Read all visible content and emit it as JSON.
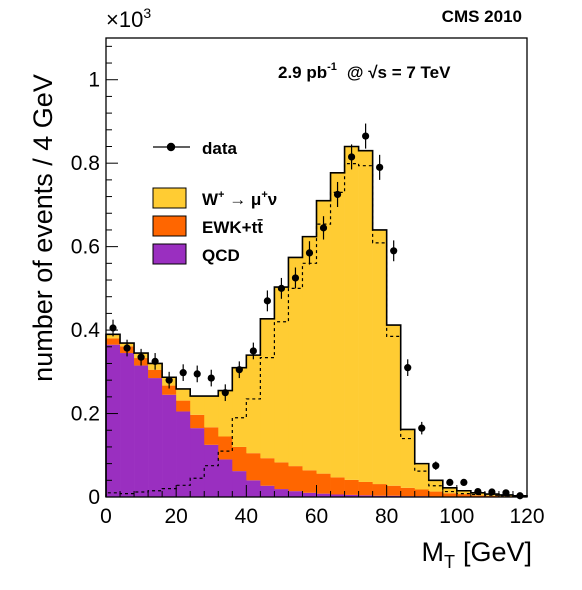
{
  "chart_data": {
    "type": "bar",
    "experiment_label": "CMS 2010",
    "luminosity_label": "2.9 pb",
    "luminosity_exponent": "-1",
    "energy_label": "@ √s = 7 TeV",
    "axis_multiplier": "×10",
    "axis_multiplier_exponent": "3",
    "xlabel": "M",
    "xlabel_sub": "T",
    "xlabel_units": "[GeV]",
    "ylabel": "number of events / 4 GeV",
    "xlim": [
      0,
      120
    ],
    "ylim": [
      0,
      1.1
    ],
    "bin_width": 4,
    "x_ticks": [
      0,
      20,
      40,
      60,
      80,
      100,
      120
    ],
    "x_tick_labels": [
      "0",
      "20",
      "40",
      "60",
      "80",
      "100",
      "120"
    ],
    "y_ticks": [
      0,
      0.2,
      0.4,
      0.6,
      0.8,
      1.0
    ],
    "y_tick_labels": [
      "0",
      "0.2",
      "0.4",
      "0.6",
      "0.8",
      "1"
    ],
    "bin_edges": [
      0,
      4,
      8,
      12,
      16,
      20,
      24,
      28,
      32,
      36,
      40,
      44,
      48,
      52,
      56,
      60,
      64,
      68,
      72,
      76,
      80,
      84,
      88,
      92,
      96,
      100,
      104,
      108,
      112,
      116,
      120
    ],
    "series": [
      {
        "name": "QCD",
        "color": "#9a2fc0",
        "values": [
          0.365,
          0.345,
          0.315,
          0.285,
          0.245,
          0.205,
          0.165,
          0.125,
          0.09,
          0.062,
          0.04,
          0.027,
          0.019,
          0.014,
          0.01,
          0.008,
          0.006,
          0.005,
          0.004,
          0.003,
          0.003,
          0.002,
          0.002,
          0.001,
          0.001,
          0.001,
          0.0,
          0.0,
          0.0,
          0.0
        ]
      },
      {
        "name": "EWK+tt̄",
        "color": "#ff6600",
        "values": [
          0.015,
          0.016,
          0.018,
          0.02,
          0.022,
          0.026,
          0.032,
          0.042,
          0.055,
          0.058,
          0.065,
          0.066,
          0.064,
          0.06,
          0.054,
          0.048,
          0.041,
          0.036,
          0.032,
          0.028,
          0.024,
          0.02,
          0.016,
          0.012,
          0.008,
          0.006,
          0.004,
          0.003,
          0.002,
          0.001
        ]
      },
      {
        "name": "W⁺ → μ⁺ν",
        "color": "#ffcc33",
        "values": [
          0.01,
          0.008,
          0.012,
          0.015,
          0.02,
          0.028,
          0.045,
          0.075,
          0.11,
          0.19,
          0.235,
          0.334,
          0.42,
          0.5,
          0.56,
          0.654,
          0.73,
          0.799,
          0.794,
          0.609,
          0.385,
          0.14,
          0.062,
          0.027,
          0.013,
          0.008,
          0.006,
          0.004,
          0.003,
          0.002
        ]
      }
    ],
    "w_only_dashed": [
      0.01,
      0.008,
      0.012,
      0.015,
      0.02,
      0.028,
      0.045,
      0.075,
      0.11,
      0.19,
      0.235,
      0.334,
      0.42,
      0.5,
      0.56,
      0.654,
      0.73,
      0.799,
      0.794,
      0.609,
      0.385,
      0.14,
      0.062,
      0.027,
      0.013,
      0.008,
      0.006,
      0.004,
      0.003,
      0.002
    ],
    "data": {
      "name": "data",
      "x": [
        2,
        6,
        10,
        14,
        18,
        22,
        26,
        30,
        34,
        38,
        42,
        46,
        50,
        54,
        58,
        62,
        66,
        70,
        74,
        78,
        82,
        86,
        90,
        94,
        98,
        102,
        106,
        110,
        114,
        118
      ],
      "y": [
        0.405,
        0.357,
        0.335,
        0.325,
        0.28,
        0.298,
        0.295,
        0.285,
        0.25,
        0.305,
        0.35,
        0.47,
        0.5,
        0.525,
        0.585,
        0.645,
        0.725,
        0.815,
        0.865,
        0.79,
        0.59,
        0.31,
        0.165,
        0.075,
        0.035,
        0.035,
        0.013,
        0.012,
        0.01,
        0.003
      ],
      "err": [
        0.02,
        0.02,
        0.02,
        0.02,
        0.02,
        0.02,
        0.02,
        0.02,
        0.02,
        0.02,
        0.02,
        0.025,
        0.025,
        0.025,
        0.028,
        0.028,
        0.03,
        0.03,
        0.03,
        0.03,
        0.025,
        0.02,
        0.015,
        0.01,
        0.007,
        0.007,
        0.004,
        0.004,
        0.004,
        0.002
      ]
    },
    "legend": [
      {
        "label": "data",
        "kind": "marker"
      },
      {
        "label": "W",
        "sup": "+",
        "rest": " → μ",
        "sup2": "+",
        "rest2": "ν",
        "kind": "fill",
        "color": "#ffcc33"
      },
      {
        "label": "EWK+tt̄",
        "kind": "fill",
        "color": "#ff6600"
      },
      {
        "label": "QCD",
        "kind": "fill",
        "color": "#9a2fc0"
      }
    ],
    "legend_position": "left"
  }
}
